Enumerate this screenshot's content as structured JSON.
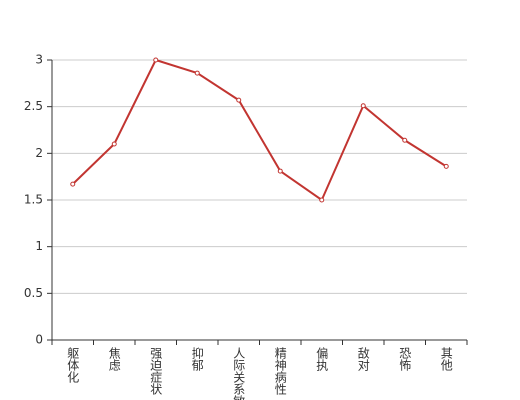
{
  "chart_data": {
    "type": "line",
    "categories": [
      "躯体化",
      "焦虑",
      "强迫症状",
      "抑郁",
      "人际关系敏感",
      "精神病性",
      "偏执",
      "敌对",
      "恐怖",
      "其他"
    ],
    "values": [
      1.67,
      2.1,
      3.0,
      2.86,
      2.57,
      1.81,
      1.5,
      2.51,
      2.14,
      1.86
    ],
    "color": "#c23531",
    "ylim": [
      0,
      3
    ],
    "yticks": [
      0,
      0.5,
      1,
      1.5,
      2,
      2.5,
      3
    ],
    "grid": true
  }
}
